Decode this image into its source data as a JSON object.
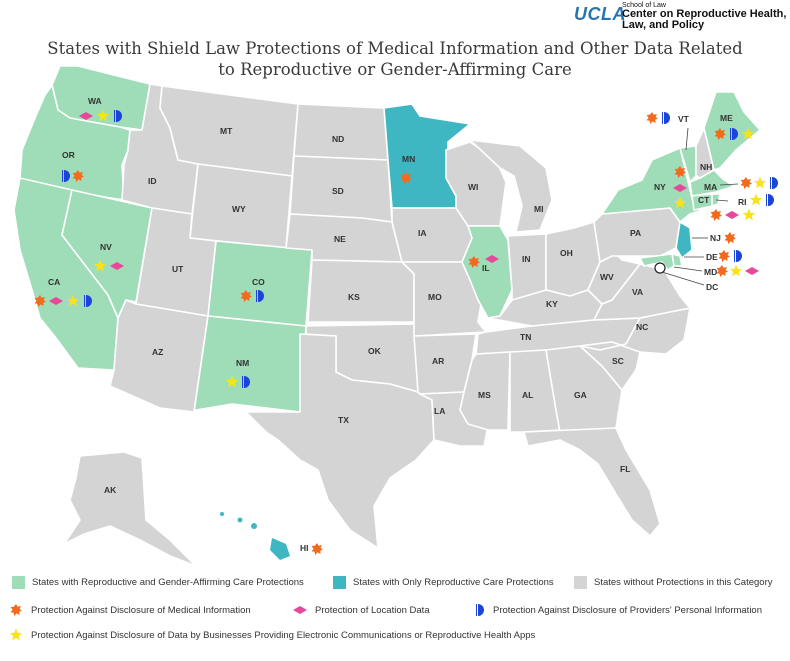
{
  "header": {
    "logo_ucla": "UCLA",
    "logo_school": "School of Law",
    "logo_center": "Center on Reproductive Health, Law, and Policy"
  },
  "title": "States with Shield Law Protections of Medical Information and Other Data Related to Reproductive or Gender-Affirming Care",
  "colors": {
    "repro_and_gender": "#9fdcb8",
    "repro_only": "#3fb7c2",
    "none": "#d4d4d4",
    "medical_icon": "#f26a1b",
    "location_icon": "#e8489a",
    "provider_icon": "#1a45d6",
    "apps_icon": "#f7e21b"
  },
  "icons": {
    "medical": "orange-starburst-icon",
    "location": "pink-diamond-icon",
    "provider": "blue-half-circle-icon",
    "apps": "yellow-star-icon"
  },
  "states": {
    "WA": "WA",
    "OR": "OR",
    "CA": "CA",
    "NV": "NV",
    "ID": "ID",
    "MT": "MT",
    "WY": "WY",
    "UT": "UT",
    "AZ": "AZ",
    "CO": "CO",
    "NM": "NM",
    "ND": "ND",
    "SD": "SD",
    "NE": "NE",
    "KS": "KS",
    "OK": "OK",
    "TX": "TX",
    "MN": "MN",
    "IA": "IA",
    "MO": "MO",
    "AR": "AR",
    "LA": "LA",
    "WI": "WI",
    "IL": "IL",
    "MI": "MI",
    "IN": "IN",
    "OH": "OH",
    "KY": "KY",
    "TN": "TN",
    "MS": "MS",
    "AL": "AL",
    "GA": "GA",
    "FL": "FL",
    "SC": "SC",
    "NC": "NC",
    "VA": "VA",
    "WV": "WV",
    "PA": "PA",
    "NY": "NY",
    "VT": "VT",
    "NH": "NH",
    "ME": "ME",
    "MA": "MA",
    "CT": "CT",
    "RI": "RI",
    "NJ": "NJ",
    "DE": "DE",
    "MD": "MD",
    "DC": "DC",
    "AK": "AK",
    "HI": "HI"
  },
  "legend": {
    "repro_and_gender": "States with Reproductive and Gender-Affirming Care Protections",
    "repro_only": "States with Only Reproductive Care Protections",
    "none": "States without Protections in this Category",
    "medical": "Protection Against Disclosure of Medical Information",
    "location": "Protection of Location Data",
    "provider": "Protection Against Disclosure of Providers' Personal Information",
    "apps": "Protection Against Disclosure of Data by Businesses Providing Electronic Communications or Reproductive Health Apps"
  }
}
